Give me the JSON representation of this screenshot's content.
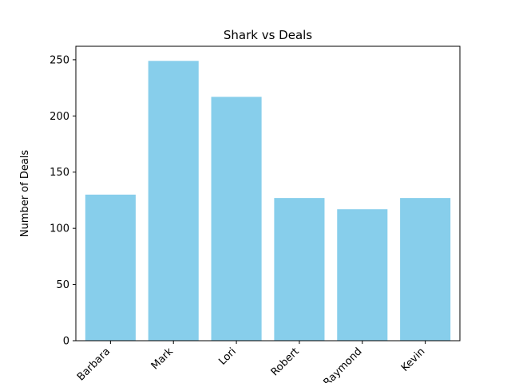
{
  "chart_data": {
    "type": "bar",
    "title": "Shark vs Deals",
    "xlabel": "",
    "ylabel": "Number of Deals",
    "categories": [
      "Barbara",
      "Mark",
      "Lori",
      "Robert",
      "Raymond",
      "Kevin"
    ],
    "values": [
      130,
      249,
      217,
      127,
      117,
      127
    ],
    "ylim": [
      0,
      262
    ],
    "yticks": [
      0,
      50,
      100,
      150,
      200,
      250
    ],
    "bar_color": "#87ceeb",
    "grid": false,
    "legend": false
  }
}
